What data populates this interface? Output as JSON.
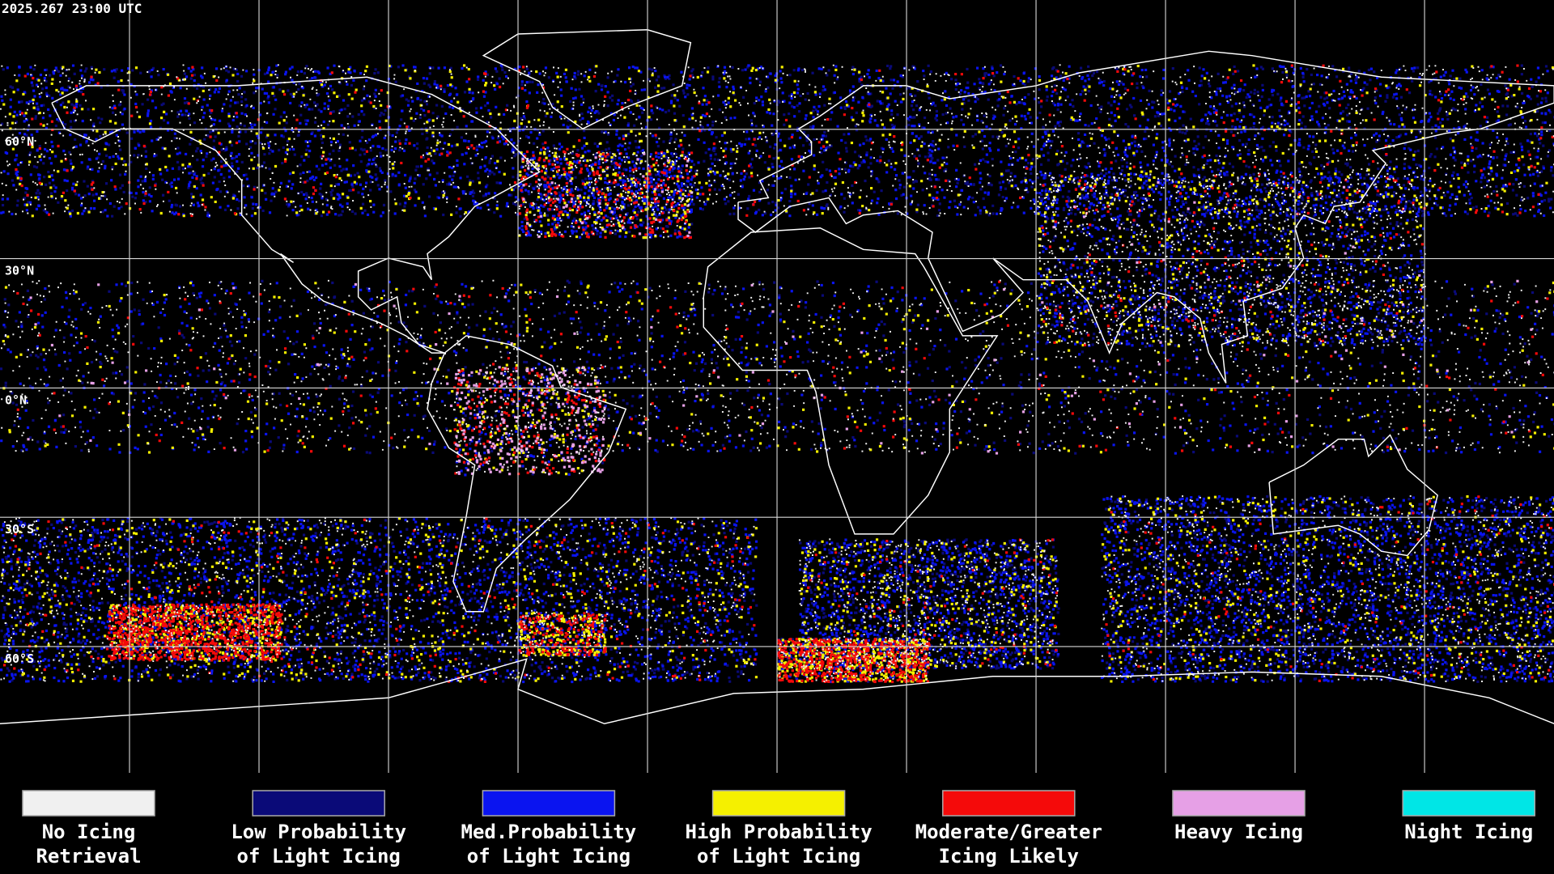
{
  "header": {
    "timestamp": "2025.267 23:00 UTC"
  },
  "lat_labels": [
    "60°N",
    "30°N",
    "0°N",
    "30°S",
    "60°S"
  ],
  "legend": {
    "items": [
      {
        "lines": [
          "No Icing",
          "Retrieval"
        ],
        "color": "#f0f0f0"
      },
      {
        "lines": [
          "Low Probability",
          "of Light Icing"
        ],
        "color": "#0a0a78"
      },
      {
        "lines": [
          "Med.Probability",
          "of Light Icing"
        ],
        "color": "#0a14f0"
      },
      {
        "lines": [
          "High Probability",
          "of Light Icing"
        ],
        "color": "#f5f000"
      },
      {
        "lines": [
          "Moderate/Greater",
          "Icing Likely"
        ],
        "color": "#f50a0a"
      },
      {
        "lines": [
          "Heavy Icing"
        ],
        "color": "#e6a0e6"
      },
      {
        "lines": [
          "Night Icing"
        ],
        "color": "#00e6e6"
      }
    ]
  }
}
